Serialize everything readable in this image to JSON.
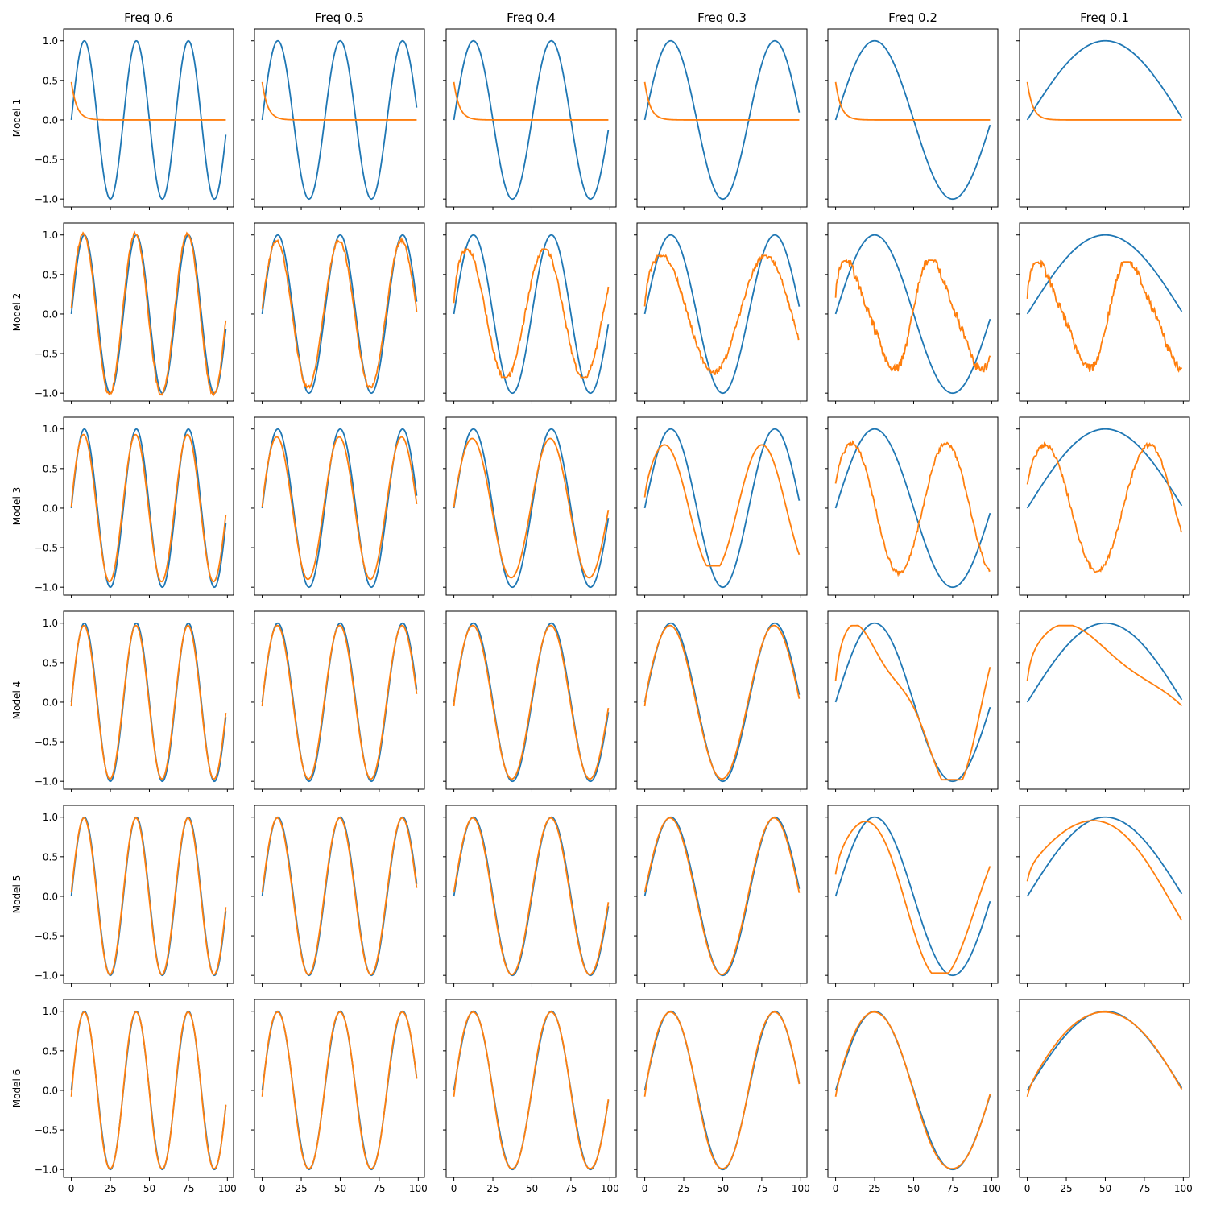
{
  "figure": {
    "col_titles": [
      "Freq 0.6",
      "Freq 0.5",
      "Freq 0.4",
      "Freq 0.3",
      "Freq 0.2",
      "Freq 0.1"
    ],
    "row_labels": [
      "Model 1",
      "Model 2",
      "Model 3",
      "Model 4",
      "Model 5",
      "Model 6"
    ],
    "colors": {
      "target": "#1f77b4",
      "prediction": "#ff7f0e"
    }
  },
  "chart_data": {
    "type": "line",
    "layout": "grid 6x6, shared x and y axes",
    "x": {
      "range": [
        0,
        99
      ],
      "ticks": [
        0,
        25,
        50,
        75,
        100
      ]
    },
    "y": {
      "ylim": [
        -1.1,
        1.15
      ],
      "ticks": [
        -1.0,
        -0.5,
        0.0,
        0.5,
        1.0
      ],
      "tick_labels": [
        "−1.0",
        "−0.5",
        "0.0",
        "0.5",
        "1.0"
      ]
    },
    "grid": false,
    "target_series": {
      "formula": "y = sin(2*pi*f*x/20), x = 0..99",
      "frequencies": [
        0.6,
        0.5,
        0.4,
        0.3,
        0.2,
        0.1
      ]
    },
    "prediction_series": {
      "Model 1": {
        "behavior": "decays from about 0.48 to 0.0 within ~10 steps, then flat at 0.0"
      },
      "Model 2": {
        "behavior": "noisy approximation; amplitude ~0.95 at high freq, ~0.7 with distorted phase at low freq"
      },
      "Model 3": {
        "behavior": "approximation; amplitude ~0.9 at high freq, ~0.8 with phase drift at low freq"
      },
      "Model 4": {
        "behavior": "close fit at high freq; skewed sawtooth-like waveform at freq 0.2 and 0.1"
      },
      "Model 5": {
        "behavior": "close fit at high freq; slight phase lead at freq 0.2 and 0.1"
      },
      "Model 6": {
        "behavior": "near-exact fit at all frequencies"
      }
    }
  }
}
